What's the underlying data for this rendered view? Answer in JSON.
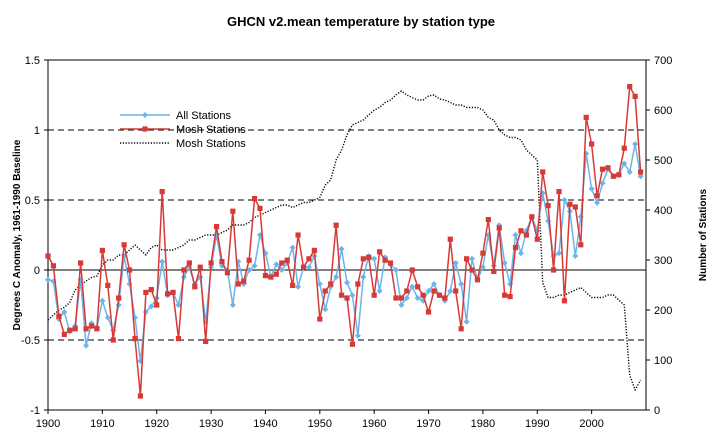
{
  "chart_data": {
    "type": "line",
    "title": "GHCN v2.mean temperature by station type",
    "xlabel": "",
    "ylabel": "Degrees C Anomaly, 1961-1990 Baseline",
    "y2label": "Number of Stations",
    "xlim": [
      1900,
      2010
    ],
    "ylim": [
      -1,
      1.5
    ],
    "y2lim": [
      0,
      700
    ],
    "xticks": [
      "1900",
      "1910",
      "1920",
      "1930",
      "1940",
      "1950",
      "1960",
      "1970",
      "1980",
      "1990",
      "2000"
    ],
    "yticks": [
      "1.5",
      "1",
      "0.5",
      "0",
      "-0.5",
      "-1"
    ],
    "y2ticks": [
      "700",
      "600",
      "500",
      "400",
      "300",
      "200",
      "100",
      "0"
    ],
    "gridlines": [
      1.0,
      0.5,
      -0.5
    ],
    "legend": "upper-left",
    "x": [
      1900,
      1901,
      1902,
      1903,
      1904,
      1905,
      1906,
      1907,
      1908,
      1909,
      1910,
      1911,
      1912,
      1913,
      1914,
      1915,
      1916,
      1917,
      1918,
      1919,
      1920,
      1921,
      1922,
      1923,
      1924,
      1925,
      1926,
      1927,
      1928,
      1929,
      1930,
      1931,
      1932,
      1933,
      1934,
      1935,
      1936,
      1937,
      1938,
      1939,
      1940,
      1941,
      1942,
      1943,
      1944,
      1945,
      1946,
      1947,
      1948,
      1949,
      1950,
      1951,
      1952,
      1953,
      1954,
      1955,
      1956,
      1957,
      1958,
      1959,
      1960,
      1961,
      1962,
      1963,
      1964,
      1965,
      1966,
      1967,
      1968,
      1969,
      1970,
      1971,
      1972,
      1973,
      1974,
      1975,
      1976,
      1977,
      1978,
      1979,
      1980,
      1981,
      1982,
      1983,
      1984,
      1985,
      1986,
      1987,
      1988,
      1989,
      1990,
      1991,
      1992,
      1993,
      1994,
      1995,
      1996,
      1997,
      1998,
      1999,
      2000,
      2001,
      2002,
      2003,
      2004,
      2005,
      2006,
      2007,
      2008,
      2009
    ],
    "series": [
      {
        "name": "All Stations",
        "color": "#6cb4ec",
        "marker": "diamond",
        "axis": "left",
        "values": [
          -0.07,
          -0.08,
          -0.35,
          -0.3,
          -0.44,
          -0.4,
          -0.07,
          -0.54,
          -0.38,
          -0.41,
          -0.22,
          -0.34,
          -0.43,
          -0.25,
          0.1,
          -0.1,
          -0.34,
          -0.65,
          -0.3,
          -0.26,
          -0.2,
          0.06,
          -0.18,
          -0.16,
          -0.25,
          -0.05,
          0.02,
          -0.1,
          -0.05,
          -0.37,
          0.02,
          0.25,
          0.03,
          0.0,
          -0.25,
          0.06,
          -0.1,
          0.0,
          0.03,
          0.25,
          0.12,
          -0.05,
          0.04,
          0.0,
          0.05,
          0.16,
          -0.12,
          0.02,
          0.02,
          0.1,
          -0.1,
          -0.28,
          -0.12,
          -0.05,
          0.15,
          -0.09,
          -0.18,
          -0.47,
          -0.05,
          0.1,
          0.08,
          -0.15,
          0.09,
          0.04,
          0.0,
          -0.25,
          -0.2,
          -0.12,
          -0.2,
          -0.22,
          -0.15,
          -0.1,
          -0.18,
          -0.22,
          -0.15,
          0.05,
          -0.1,
          -0.37,
          0.08,
          -0.07,
          0.02,
          0.25,
          0.03,
          0.32,
          0.05,
          -0.1,
          0.25,
          0.12,
          0.28,
          0.38,
          0.28,
          0.55,
          0.35,
          0.1,
          0.12,
          0.5,
          0.42,
          0.1,
          0.38,
          0.83,
          0.58,
          0.48,
          0.62,
          0.72,
          0.67,
          0.68,
          0.76,
          0.7,
          0.9,
          0.67
        ]
      },
      {
        "name": "Mosh Stations",
        "color": "#d73a36",
        "marker": "square",
        "axis": "left",
        "values": [
          0.1,
          0.03,
          -0.33,
          -0.46,
          -0.43,
          -0.42,
          0.05,
          -0.42,
          -0.4,
          -0.42,
          0.14,
          -0.11,
          -0.5,
          -0.2,
          0.18,
          0.0,
          -0.49,
          -0.9,
          -0.16,
          -0.14,
          -0.25,
          0.56,
          -0.17,
          -0.16,
          -0.49,
          0.0,
          0.05,
          -0.12,
          0.02,
          -0.51,
          0.05,
          0.31,
          0.06,
          -0.02,
          0.42,
          -0.1,
          -0.08,
          0.07,
          0.51,
          0.44,
          -0.04,
          -0.05,
          -0.03,
          0.05,
          0.07,
          -0.11,
          0.25,
          0.02,
          0.08,
          0.14,
          -0.35,
          -0.15,
          -0.1,
          0.32,
          -0.18,
          -0.2,
          -0.53,
          -0.1,
          0.08,
          0.09,
          -0.18,
          0.13,
          0.07,
          0.05,
          -0.2,
          -0.2,
          -0.15,
          0.0,
          -0.12,
          -0.18,
          -0.3,
          -0.15,
          -0.18,
          -0.2,
          0.22,
          -0.15,
          -0.42,
          0.08,
          0.0,
          -0.07,
          0.12,
          0.36,
          -0.01,
          0.3,
          -0.18,
          -0.19,
          0.16,
          0.28,
          0.25,
          0.38,
          0.22,
          0.7,
          0.46,
          0.0,
          0.56,
          -0.22,
          0.47,
          0.45,
          0.18,
          1.09,
          0.9,
          0.53,
          0.72,
          0.73,
          0.67,
          0.68,
          0.87,
          1.31,
          1.24,
          0.7
        ]
      },
      {
        "name": "Mosh Stations",
        "color": "#000000",
        "style": "dotted",
        "axis": "right",
        "values": [
          180,
          190,
          200,
          205,
          215,
          240,
          250,
          258,
          265,
          268,
          290,
          300,
          300,
          310,
          310,
          320,
          330,
          320,
          310,
          325,
          330,
          320,
          320,
          320,
          325,
          330,
          340,
          340,
          345,
          350,
          350,
          350,
          355,
          360,
          370,
          370,
          370,
          375,
          385,
          390,
          395,
          400,
          405,
          410,
          410,
          405,
          410,
          415,
          415,
          420,
          425,
          450,
          460,
          500,
          520,
          550,
          570,
          575,
          580,
          590,
          600,
          605,
          615,
          620,
          630,
          638,
          630,
          625,
          620,
          620,
          628,
          630,
          622,
          620,
          615,
          610,
          610,
          605,
          605,
          605,
          600,
          585,
          580,
          560,
          550,
          545,
          545,
          540,
          520,
          510,
          500,
          255,
          225,
          225,
          230,
          230,
          235,
          240,
          245,
          235,
          225,
          225,
          225,
          230,
          230,
          220,
          210,
          70,
          40,
          60
        ]
      }
    ]
  }
}
